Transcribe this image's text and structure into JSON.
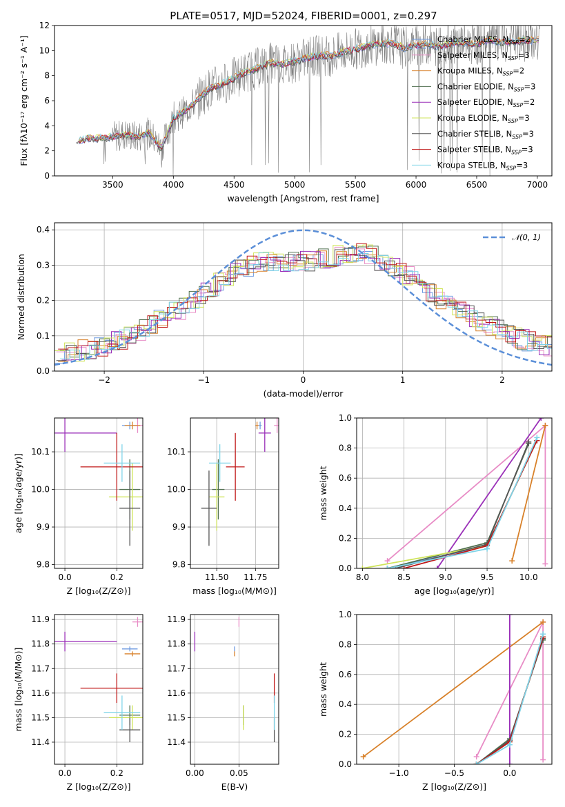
{
  "title": "PLATE=0517, MJD=52024, FIBERID=0001, z=0.297",
  "colors": {
    "Chabrier MILES": "#6f9be0",
    "Salpeter MILES": "#e88cc6",
    "Kroupa MILES": "#d8812a",
    "Chabrier ELODIE": "#4f6f4f",
    "Salpeter ELODIE": "#9a2fb8",
    "Kroupa ELODIE": "#cfe45a",
    "Chabrier STELIB": "#555555",
    "Salpeter STELIB": "#c01818",
    "Kroupa STELIB": "#7fd4e8",
    "data": "#7f7f7f",
    "normal": "#5b8fd8"
  },
  "legend_entries": [
    {
      "name": "Chabrier MILES",
      "nssp": "2"
    },
    {
      "name": "Salpeter MILES",
      "nssp": "3"
    },
    {
      "name": "Kroupa MILES",
      "nssp": "2"
    },
    {
      "name": "Chabrier ELODIE",
      "nssp": "3"
    },
    {
      "name": "Salpeter ELODIE",
      "nssp": "2"
    },
    {
      "name": "Kroupa ELODIE",
      "nssp": "3"
    },
    {
      "name": "Chabrier STELIB",
      "nssp": "3"
    },
    {
      "name": "Salpeter STELIB",
      "nssp": "3"
    },
    {
      "name": "Kroupa STELIB",
      "nssp": "3"
    }
  ],
  "chart_data": [
    {
      "id": "spectrum",
      "type": "line",
      "xlabel": "wavelength [Angstrom, rest frame]",
      "ylabel": "Flux [fλ10⁻¹⁷ erg cm⁻² s⁻¹ A⁻¹]",
      "xlim": [
        3020,
        7120
      ],
      "ylim": [
        0,
        12
      ],
      "xticks": [
        3500,
        4000,
        4500,
        5000,
        5500,
        6000,
        6500,
        7000
      ],
      "yticks": [
        0,
        2,
        4,
        6,
        8,
        10,
        12
      ],
      "model_continuum": {
        "x": [
          3200,
          3300,
          3400,
          3500,
          3600,
          3700,
          3800,
          3900,
          4000,
          4100,
          4200,
          4300,
          4400,
          4500,
          4600,
          4700,
          4800,
          4900,
          5000,
          5100,
          5200,
          5300,
          5400,
          5500,
          5600,
          5700,
          5800,
          5900,
          6000,
          6100,
          6200,
          6300,
          6400,
          6500,
          6600,
          6700,
          6800,
          6900,
          7000
        ],
        "y": [
          2.7,
          3.0,
          3.0,
          3.1,
          3.3,
          3.1,
          3.4,
          2.2,
          4.6,
          5.2,
          6.1,
          7.0,
          7.3,
          7.8,
          8.3,
          8.6,
          9.0,
          8.9,
          9.1,
          9.4,
          9.6,
          9.6,
          9.9,
          10.1,
          10.4,
          10.5,
          10.6,
          10.2,
          10.4,
          10.5,
          10.3,
          10.6,
          10.6,
          10.5,
          10.8,
          10.7,
          10.7,
          10.8,
          10.8
        ]
      }
    },
    {
      "id": "residuals",
      "type": "line",
      "xlabel": "(data-model)/error",
      "ylabel": "Normed distribution",
      "xlim": [
        -2.5,
        2.5
      ],
      "ylim": [
        0,
        0.42
      ],
      "xticks": [
        -2,
        -1,
        0,
        1,
        2
      ],
      "yticks": [
        0.0,
        0.1,
        0.2,
        0.3,
        0.4
      ],
      "legend": "$\\mathcal{N}(0,1)$",
      "legend_text": "𝒩(0, 1)",
      "envelope": {
        "x": [
          -2.5,
          -2.2,
          -2.0,
          -1.8,
          -1.6,
          -1.4,
          -1.2,
          -1.0,
          -0.8,
          -0.6,
          -0.4,
          -0.2,
          0.0,
          0.2,
          0.4,
          0.6,
          0.8,
          1.0,
          1.2,
          1.4,
          1.6,
          1.8,
          2.0,
          2.2,
          2.5
        ],
        "y": [
          0.04,
          0.06,
          0.07,
          0.09,
          0.12,
          0.15,
          0.18,
          0.22,
          0.26,
          0.29,
          0.31,
          0.31,
          0.31,
          0.32,
          0.33,
          0.34,
          0.31,
          0.28,
          0.24,
          0.2,
          0.17,
          0.14,
          0.11,
          0.09,
          0.07
        ]
      }
    },
    {
      "id": "age-vs-Z",
      "type": "scatter",
      "xlabel": "Z [log₁₀(Z/Z⊙)]",
      "ylabel": "age  [log₁₀(age/yr)]",
      "xlim": [
        -0.04,
        0.3
      ],
      "ylim": [
        9.79,
        10.19
      ],
      "xticks": [
        0.0,
        0.2
      ],
      "yticks": [
        9.8,
        9.9,
        10.0,
        10.1
      ]
    },
    {
      "id": "age-vs-mass",
      "type": "scatter",
      "xlabel": "mass [log₁₀(M/M⊙)]",
      "ylabel": "",
      "xlim": [
        11.33,
        11.9
      ],
      "ylim": [
        9.79,
        10.19
      ],
      "xticks": [
        11.5,
        11.75
      ],
      "yticks": [
        9.8,
        9.9,
        10.0,
        10.1
      ]
    },
    {
      "id": "mass-weight-vs-age",
      "type": "line",
      "xlabel": "age  [log₁₀(age/yr)]",
      "ylabel": "mass weight",
      "xlim": [
        7.93,
        10.28
      ],
      "ylim": [
        0,
        1
      ],
      "xticks": [
        8.0,
        8.5,
        9.0,
        9.5,
        10.0
      ],
      "yticks": [
        0.0,
        0.2,
        0.4,
        0.6,
        0.8,
        1.0
      ]
    },
    {
      "id": "mass-vs-Z",
      "type": "scatter",
      "xlabel": "Z [log₁₀(Z/Z⊙)]",
      "ylabel": "mass [log₁₀(M/M⊙)]",
      "xlim": [
        -0.04,
        0.3
      ],
      "ylim": [
        11.31,
        11.92
      ],
      "xticks": [
        0.0,
        0.2
      ],
      "yticks": [
        11.4,
        11.5,
        11.6,
        11.7,
        11.8,
        11.9
      ]
    },
    {
      "id": "mass-vs-EBV",
      "type": "scatter",
      "xlabel": "E(B-V)",
      "ylabel": "",
      "xlim": [
        -0.005,
        0.095
      ],
      "ylim": [
        11.31,
        11.92
      ],
      "xticks": [
        0.0,
        0.05
      ],
      "yticks": [
        11.4,
        11.5,
        11.6,
        11.7,
        11.8,
        11.9
      ]
    },
    {
      "id": "mass-weight-vs-Z",
      "type": "line",
      "xlabel": "Z [log₁₀(Z/Z⊙)]",
      "ylabel": "mass weight",
      "xlim": [
        -1.38,
        0.38
      ],
      "ylim": [
        0,
        1
      ],
      "xticks": [
        -1.0,
        -0.5,
        0.0
      ],
      "yticks": [
        0.0,
        0.2,
        0.4,
        0.6,
        0.8,
        1.0
      ]
    }
  ],
  "fits": [
    {
      "model": "Chabrier MILES",
      "Z": 0.25,
      "Zerr": 0.03,
      "age": 10.17,
      "ageerr": 0.01,
      "mass": 11.78,
      "masserr": 0.01,
      "ebv": 0.045,
      "ages": [
        8.3,
        9.5,
        10.1
      ],
      "w": [
        0.0,
        0.15,
        0.85
      ],
      "Zs": [
        -0.3,
        0.0,
        0.3
      ]
    },
    {
      "model": "Salpeter MILES",
      "Z": 0.28,
      "Zerr": 0.02,
      "age": 10.17,
      "ageerr": 0.02,
      "mass": 11.89,
      "masserr": 0.02,
      "ebv": 0.05,
      "ages": [
        8.3,
        10.2,
        10.2
      ],
      "w": [
        0.05,
        0.95,
        0.03
      ],
      "Zs": [
        -0.3,
        0.3,
        0.3
      ]
    },
    {
      "model": "Kroupa MILES",
      "Z": 0.26,
      "Zerr": 0.03,
      "age": 10.17,
      "ageerr": 0.01,
      "mass": 11.76,
      "masserr": 0.01,
      "ebv": 0.045,
      "ages": [
        9.8,
        10.2
      ],
      "w": [
        0.05,
        0.95
      ],
      "Zs": [
        -1.32,
        0.3
      ]
    },
    {
      "model": "Chabrier ELODIE",
      "Z": 0.25,
      "Zerr": 0.04,
      "age": 10.0,
      "ageerr": 0.08,
      "mass": 11.51,
      "masserr": 0.04,
      "ebv": 0.055,
      "ages": [
        8.3,
        9.5,
        10.0
      ],
      "w": [
        0.0,
        0.17,
        0.83
      ],
      "Zs": [
        -0.3,
        0.0,
        0.3
      ]
    },
    {
      "model": "Salpeter ELODIE",
      "Z": 0.0,
      "Zerr": 0.2,
      "age": 10.15,
      "ageerr": 0.05,
      "mass": 11.81,
      "masserr": 0.04,
      "ebv": 0.0,
      "ages": [
        8.9,
        10.15
      ],
      "w": [
        0.0,
        1.0
      ],
      "Zs": [
        0.0,
        0.0
      ]
    },
    {
      "model": "Kroupa ELODIE",
      "Z": 0.26,
      "Zerr": 0.09,
      "age": 9.98,
      "ageerr": 0.09,
      "mass": 11.5,
      "masserr": 0.05,
      "ebv": 0.055,
      "ages": [
        8.0,
        9.5,
        10.1
      ],
      "w": [
        0.0,
        0.15,
        0.85
      ],
      "Zs": [
        -0.3,
        0.0,
        0.3
      ]
    },
    {
      "model": "Chabrier STELIB",
      "Z": 0.25,
      "Zerr": 0.04,
      "age": 9.95,
      "ageerr": 0.1,
      "mass": 11.45,
      "masserr": 0.05,
      "ebv": 0.09,
      "ages": [
        8.4,
        9.5,
        10.0
      ],
      "w": [
        0.0,
        0.16,
        0.84
      ],
      "Zs": [
        -0.3,
        0.0,
        0.3
      ]
    },
    {
      "model": "Salpeter STELIB",
      "Z": 0.2,
      "Zerr": 0.14,
      "age": 10.06,
      "ageerr": 0.09,
      "mass": 11.62,
      "masserr": 0.06,
      "ebv": 0.09,
      "ages": [
        8.5,
        9.5,
        10.1
      ],
      "w": [
        0.0,
        0.15,
        0.85
      ],
      "Zs": [
        -0.3,
        0.0,
        0.3
      ]
    },
    {
      "model": "Kroupa STELIB",
      "Z": 0.22,
      "Zerr": 0.07,
      "age": 10.07,
      "ageerr": 0.05,
      "mass": 11.52,
      "masserr": 0.07,
      "ebv": 0.09,
      "ages": [
        8.3,
        9.5,
        10.1
      ],
      "w": [
        0.0,
        0.13,
        0.87
      ],
      "Zs": [
        -0.3,
        0.0,
        0.3
      ]
    }
  ]
}
